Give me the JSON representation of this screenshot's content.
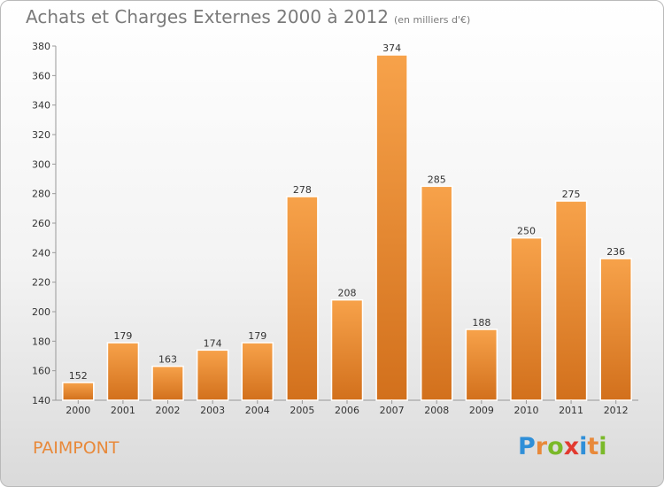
{
  "title": "Achats et Charges Externes 2000 à 2012",
  "subtitle": "(en milliers d'€)",
  "location": "PAIMPONT",
  "brand": {
    "letters": [
      "P",
      "r",
      "o",
      "x",
      "i",
      "t",
      "i"
    ],
    "colors": [
      "#2f8fd8",
      "#e8893a",
      "#7ab929",
      "#e23a2f",
      "#2f8fd8",
      "#e8893a",
      "#7ab929"
    ]
  },
  "colors": {
    "bar_top": "#f7a24a",
    "bar_bottom": "#d2701c",
    "accent": "#e8893a"
  },
  "chart_data": {
    "type": "bar",
    "title": "Achats et Charges Externes 2000 à 2012",
    "subtitle": "(en milliers d'€)",
    "categories": [
      "2000",
      "2001",
      "2002",
      "2003",
      "2004",
      "2005",
      "2006",
      "2007",
      "2008",
      "2009",
      "2010",
      "2011",
      "2012"
    ],
    "values": [
      152,
      179,
      163,
      174,
      179,
      278,
      208,
      374,
      285,
      188,
      250,
      275,
      236
    ],
    "ylim": [
      140,
      380
    ],
    "yticks": [
      140,
      160,
      180,
      200,
      220,
      240,
      260,
      280,
      300,
      320,
      340,
      360,
      380
    ],
    "grid": false,
    "data_labels": true
  }
}
